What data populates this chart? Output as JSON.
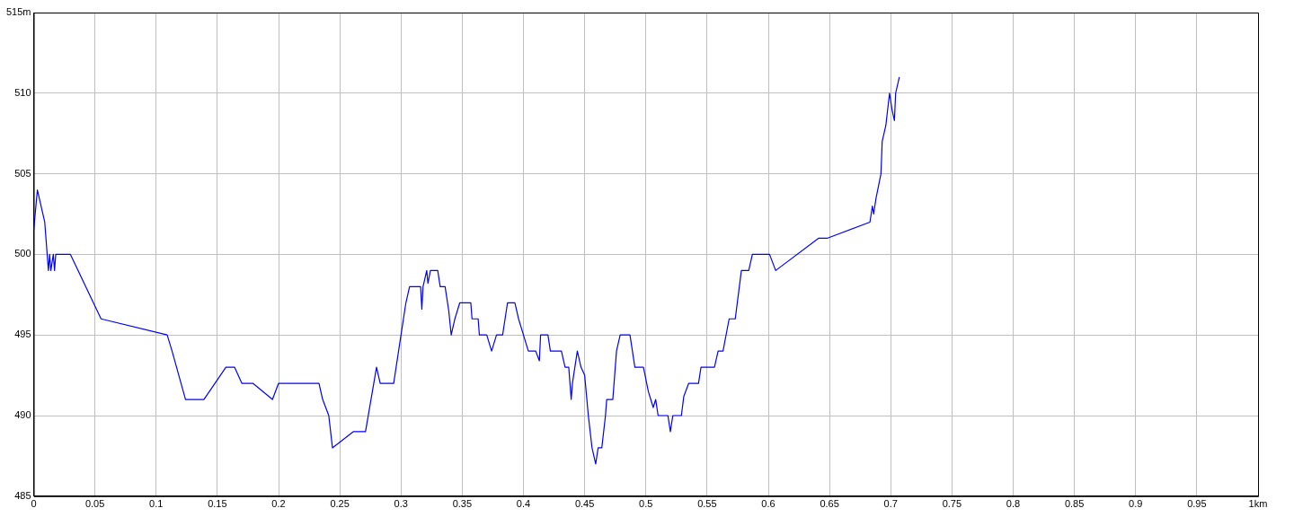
{
  "chart_data": {
    "type": "line",
    "xlim": [
      0,
      1
    ],
    "ylim": [
      485,
      515
    ],
    "xticks": [
      0,
      0.05,
      0.1,
      0.15,
      0.2,
      0.25,
      0.3,
      0.35,
      0.4,
      0.45,
      0.5,
      0.55,
      0.6,
      0.65,
      0.7,
      0.75,
      0.8,
      0.85,
      0.9,
      0.95,
      {
        "value": 1,
        "label": "1km"
      }
    ],
    "yticks": [
      485,
      490,
      495,
      500,
      505,
      510,
      {
        "value": 515,
        "label": "515m"
      }
    ],
    "grid": true,
    "legend": false,
    "marker": "none",
    "line_style": "solid",
    "series": [
      {
        "color": "#0000ff",
        "x": [
          0,
          0.003,
          0.009,
          0.012,
          0.013,
          0.014,
          0.016,
          0.017,
          0.018,
          0.03,
          0.055,
          0.109,
          0.113,
          0.124,
          0.139,
          0.157,
          0.164,
          0.17,
          0.179,
          0.195,
          0.2,
          0.233,
          0.236,
          0.241,
          0.244,
          0.261,
          0.271,
          0.28,
          0.283,
          0.294,
          0.3,
          0.304,
          0.307,
          0.316,
          0.317,
          0.318,
          0.321,
          0.322,
          0.324,
          0.33,
          0.332,
          0.336,
          0.339,
          0.341,
          0.344,
          0.348,
          0.357,
          0.358,
          0.363,
          0.364,
          0.37,
          0.374,
          0.378,
          0.383,
          0.387,
          0.393,
          0.396,
          0.4,
          0.404,
          0.41,
          0.413,
          0.414,
          0.42,
          0.422,
          0.431,
          0.434,
          0.437,
          0.439,
          0.44,
          0.444,
          0.447,
          0.45,
          0.453,
          0.456,
          0.459,
          0.461,
          0.464,
          0.467,
          0.468,
          0.473,
          0.476,
          0.479,
          0.487,
          0.491,
          0.498,
          0.502,
          0.504,
          0.506,
          0.508,
          0.51,
          0.518,
          0.52,
          0.522,
          0.529,
          0.531,
          0.535,
          0.543,
          0.545,
          0.556,
          0.559,
          0.563,
          0.568,
          0.573,
          0.578,
          0.584,
          0.587,
          0.601,
          0.606,
          0.641,
          0.648,
          0.683,
          0.685,
          0.686,
          0.688,
          0.692,
          0.693,
          0.696,
          0.699,
          0.701,
          0.703,
          0.704,
          0.707
        ],
        "values": [
          501.5,
          504,
          502,
          499,
          500,
          499,
          500,
          499,
          500,
          500,
          496,
          495,
          494,
          491,
          491,
          493,
          493,
          492,
          492,
          491,
          492,
          492,
          491,
          490,
          488,
          489,
          489,
          493,
          492,
          492,
          495,
          497,
          498,
          498,
          496.6,
          498,
          499,
          498.2,
          499,
          499,
          498,
          498,
          496.5,
          495,
          496,
          497,
          497,
          496,
          496,
          495,
          495,
          494,
          495,
          495,
          497,
          497,
          496,
          495,
          494,
          494,
          493.4,
          495,
          495,
          494,
          494,
          493,
          493,
          491,
          492,
          494,
          493,
          492.5,
          490,
          488,
          487,
          488,
          488,
          490,
          491,
          491,
          494,
          495,
          495,
          493,
          493,
          491.5,
          491,
          490.5,
          491,
          490,
          490,
          489,
          490,
          490,
          491.2,
          492,
          492,
          493,
          493,
          494,
          494,
          496,
          496,
          499,
          499,
          500,
          500,
          499,
          501,
          501,
          502,
          503,
          502.5,
          503.5,
          505,
          507,
          508,
          510,
          509,
          508.3,
          510,
          511
        ]
      }
    ]
  }
}
